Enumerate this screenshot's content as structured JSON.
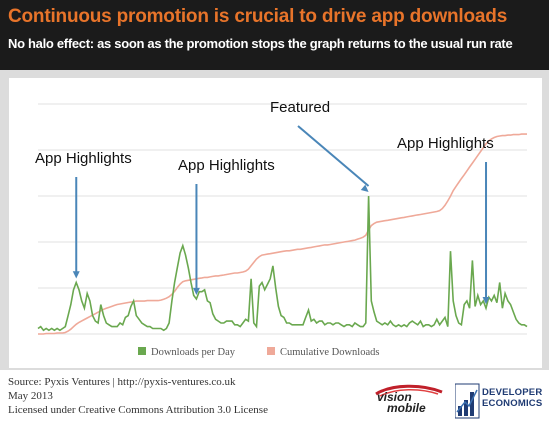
{
  "header": {
    "title": "Continuous promotion is crucial to drive app downloads",
    "subtitle": "No halo effect: as soon as the promotion stops the graph returns to the usual run rate"
  },
  "colors": {
    "downloads": "#6aa84f",
    "cumulative": "#efa999",
    "arrow": "#4a86b8",
    "title": "#e8742a"
  },
  "annotations": [
    {
      "label": "App Highlights",
      "target_x": 14
    },
    {
      "label": "App Highlights",
      "target_x": 58
    },
    {
      "label": "Featured",
      "target_x": 121
    },
    {
      "label": "App Highlights",
      "target_x": 164
    }
  ],
  "chart_data": {
    "type": "line",
    "x": [
      0,
      1,
      2,
      3,
      4,
      5,
      6,
      7,
      8,
      9,
      10,
      11,
      12,
      13,
      14,
      15,
      16,
      17,
      18,
      19,
      20,
      21,
      22,
      23,
      24,
      25,
      26,
      27,
      28,
      29,
      30,
      31,
      32,
      33,
      34,
      35,
      36,
      37,
      38,
      39,
      40,
      41,
      42,
      43,
      44,
      45,
      46,
      47,
      48,
      49,
      50,
      51,
      52,
      53,
      54,
      55,
      56,
      57,
      58,
      59,
      60,
      61,
      62,
      63,
      64,
      65,
      66,
      67,
      68,
      69,
      70,
      71,
      72,
      73,
      74,
      75,
      76,
      77,
      78,
      79,
      80,
      81,
      82,
      83,
      84,
      85,
      86,
      87,
      88,
      89,
      90,
      91,
      92,
      93,
      94,
      95,
      96,
      97,
      98,
      99,
      100,
      101,
      102,
      103,
      104,
      105,
      106,
      107,
      108,
      109,
      110,
      111,
      112,
      113,
      114,
      115,
      116,
      117,
      118,
      119,
      120,
      121,
      122,
      123,
      124,
      125,
      126,
      127,
      128,
      129,
      130,
      131,
      132,
      133,
      134,
      135,
      136,
      137,
      138,
      139,
      140,
      141,
      142,
      143,
      144,
      145,
      146,
      147,
      148,
      149,
      150,
      151,
      152,
      153,
      154,
      155,
      156,
      157,
      158,
      159,
      160,
      161,
      162,
      163,
      164,
      165,
      166,
      167,
      168,
      169,
      170,
      171,
      172,
      173,
      174,
      175,
      176,
      177,
      178,
      179
    ],
    "series": [
      {
        "name": "Downloads per Day",
        "values": [
          3,
          4,
          2,
          3,
          2,
          3,
          2,
          3,
          2,
          3,
          4,
          10,
          16,
          24,
          28,
          24,
          18,
          14,
          22,
          18,
          10,
          7,
          6,
          16,
          10,
          6,
          5,
          4,
          4,
          4,
          6,
          5,
          9,
          10,
          15,
          18,
          10,
          8,
          6,
          5,
          4,
          4,
          3,
          3,
          3,
          3,
          2,
          3,
          6,
          18,
          28,
          36,
          44,
          48,
          43,
          36,
          28,
          21,
          19,
          23,
          23,
          24,
          18,
          17,
          11,
          8,
          7,
          6,
          6,
          7,
          7,
          7,
          5,
          5,
          4,
          6,
          8,
          7,
          30,
          6,
          4,
          26,
          28,
          24,
          27,
          30,
          37,
          25,
          15,
          10,
          9,
          6,
          6,
          5,
          5,
          5,
          5,
          5,
          9,
          13,
          7,
          8,
          6,
          7,
          7,
          5,
          6,
          6,
          5,
          6,
          6,
          5,
          4,
          5,
          5,
          4,
          6,
          5,
          4,
          4,
          6,
          75,
          18,
          12,
          7,
          6,
          5,
          6,
          5,
          7,
          5,
          4,
          5,
          4,
          5,
          4,
          6,
          7,
          6,
          5,
          7,
          4,
          5,
          5,
          4,
          5,
          8,
          5,
          7,
          9,
          4,
          45,
          18,
          10,
          6,
          5,
          16,
          18,
          14,
          40,
          15,
          21,
          16,
          18,
          14,
          20,
          18,
          21,
          17,
          28,
          14,
          22,
          18,
          16,
          12,
          8,
          6,
          5,
          5,
          4
        ]
      },
      {
        "name": "Cumulative Downloads",
        "values": [
          0,
          0,
          0,
          1,
          1,
          1,
          1,
          2,
          2,
          2,
          3,
          6,
          10,
          15,
          20,
          24,
          27,
          30,
          33,
          36,
          39,
          42,
          45,
          48,
          51,
          53,
          55,
          57,
          59,
          61,
          62,
          63,
          64,
          65,
          66,
          67,
          68,
          68,
          68,
          68,
          69,
          69,
          69,
          69,
          69,
          70,
          72,
          74,
          77,
          82,
          88,
          96,
          103,
          108,
          110,
          111,
          112,
          113,
          114,
          115,
          116,
          117,
          117,
          118,
          119,
          120,
          120,
          121,
          122,
          123,
          124,
          125,
          126,
          126,
          127,
          128,
          130,
          134,
          141,
          148,
          155,
          160,
          163,
          164,
          165,
          166,
          167,
          168,
          169,
          170,
          171,
          172,
          172,
          173,
          174,
          175,
          175,
          176,
          177,
          178,
          179,
          180,
          181,
          182,
          183,
          184,
          184,
          185,
          186,
          187,
          188,
          189,
          190,
          191,
          192,
          193,
          194,
          196,
          198,
          200,
          204,
          215,
          224,
          228,
          231,
          232,
          233,
          234,
          235,
          236,
          237,
          238,
          239,
          240,
          241,
          242,
          243,
          244,
          245,
          246,
          247,
          248,
          249,
          250,
          251,
          252,
          253,
          255,
          259,
          266,
          275,
          285,
          296,
          305,
          313,
          321,
          329,
          337,
          345,
          353,
          361,
          369,
          377,
          385,
          393,
          399,
          403,
          406,
          408,
          409,
          410,
          410,
          411,
          411,
          412,
          412,
          412,
          413,
          413,
          413
        ]
      }
    ],
    "ylim": [
      0,
      100
    ],
    "y2lim": [
      0,
      500
    ],
    "grid": true,
    "legend": "bottom",
    "xlabel": "",
    "ylabel": ""
  },
  "legend": {
    "items": [
      "Downloads per Day",
      "Cumulative Downloads"
    ]
  },
  "footer": {
    "line1": "Source: Pyxis Ventures | http://pyxis-ventures.co.uk",
    "line2": "May 2013",
    "line3": "Licensed under Creative Commons Attribution 3.0 License",
    "vision_mobile_line1": "vision",
    "vision_mobile_line2": "mobile",
    "developer_line1": "DEVELOPER",
    "developer_line2": "ECONOMICS"
  }
}
